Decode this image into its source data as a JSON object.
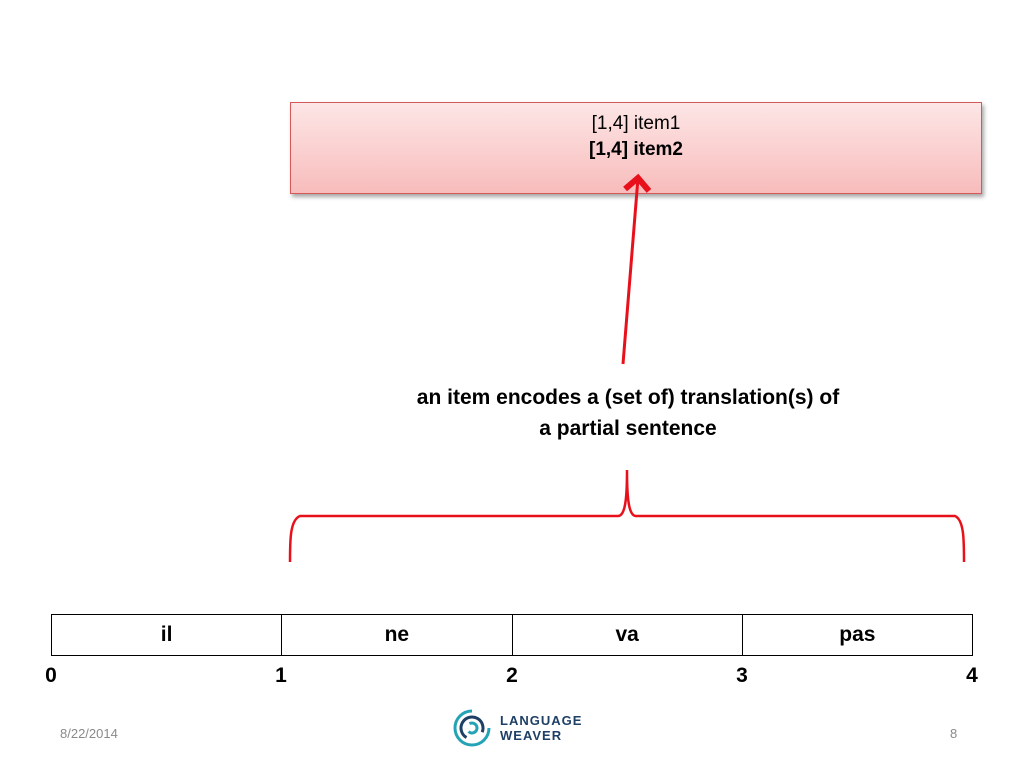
{
  "item_box": {
    "line1": "[1,4] item1",
    "line2": "[1,4] item2"
  },
  "caption": {
    "line1": "an item encodes a (set of) translation(s) of",
    "line2": "a partial sentence"
  },
  "tokens": [
    "il",
    "ne",
    "va",
    "pas"
  ],
  "indices": [
    "0",
    "1",
    "2",
    "3",
    "4"
  ],
  "footer": {
    "date": "8/22/2014",
    "page": "8",
    "logo_line1": "LANGUAGE",
    "logo_line2": "WEAVER"
  },
  "colors": {
    "arrow": "#e8111b",
    "logo_teal": "#23a3b5",
    "logo_navy": "#1e3f66"
  },
  "icons": {
    "logo": "language-weaver-logo-icon"
  }
}
